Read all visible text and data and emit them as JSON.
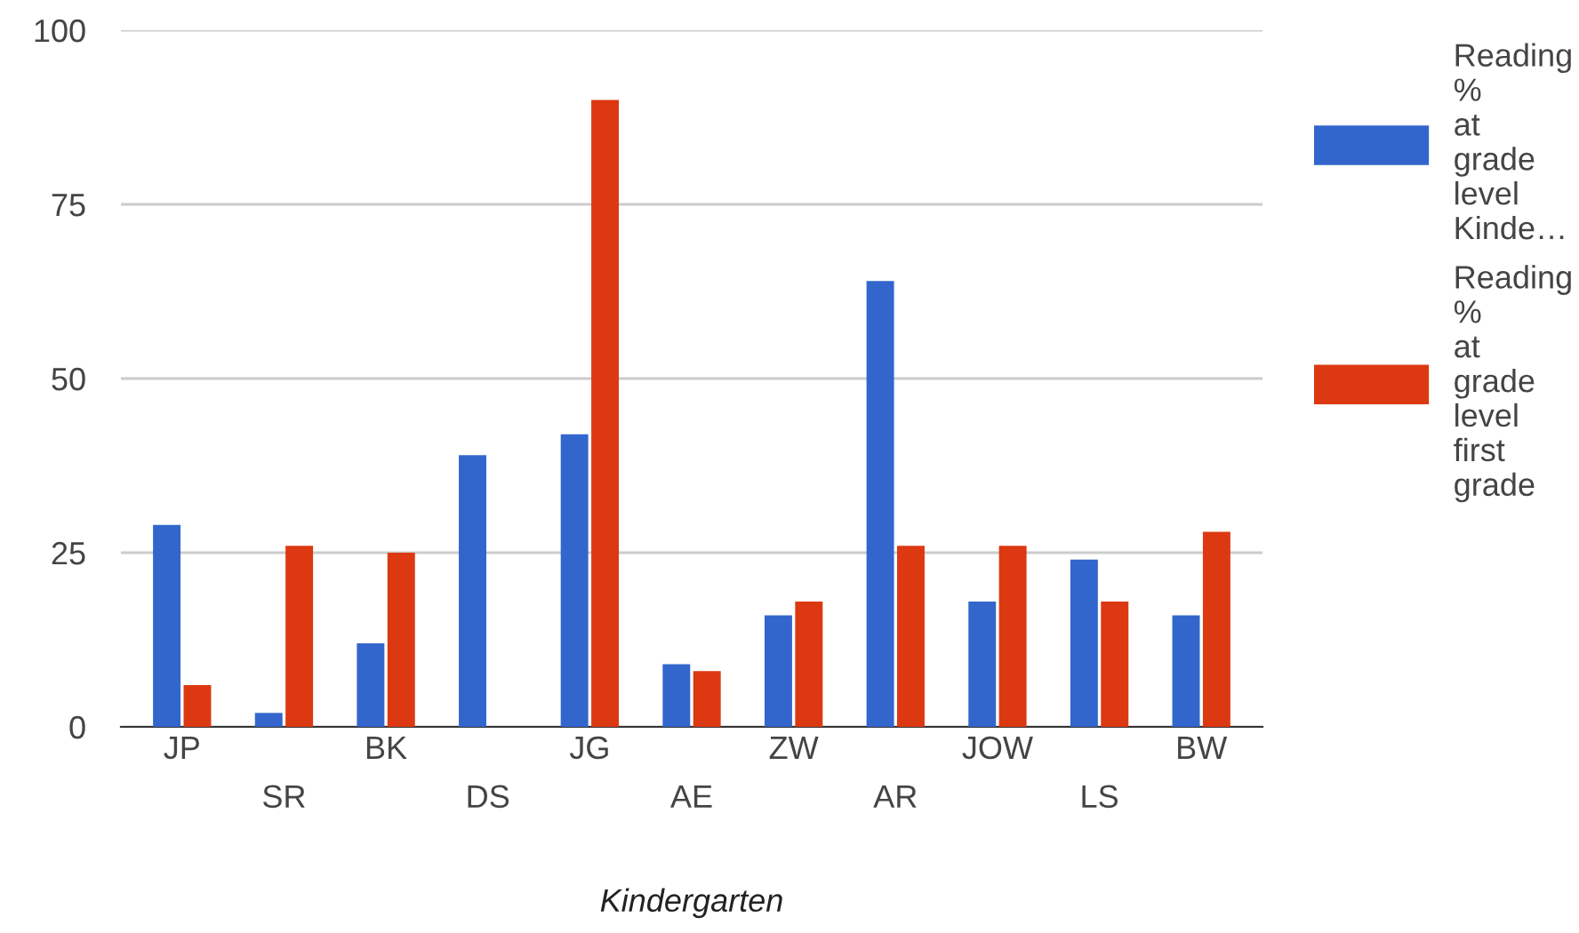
{
  "chart_data": {
    "type": "bar",
    "xlabel": "Kindergarten",
    "categories": [
      "JP",
      "SR",
      "BK",
      "DS",
      "JG",
      "AE",
      "ZW",
      "AR",
      "JOW",
      "LS",
      "BW"
    ],
    "series": [
      {
        "name": "Reading % at grade level Kinde…",
        "color": "#3366cc",
        "values": [
          29,
          2,
          12,
          39,
          42,
          9,
          16,
          64,
          18,
          24,
          16
        ]
      },
      {
        "name": "Reading % at grade level first grade",
        "color": "#dc3912",
        "values": [
          6,
          26,
          25,
          0,
          90,
          8,
          18,
          26,
          26,
          18,
          28
        ]
      }
    ],
    "ylim": [
      0,
      100
    ],
    "yticks": [
      0,
      25,
      50,
      75,
      100
    ],
    "grid": "y",
    "legend": "top right"
  }
}
